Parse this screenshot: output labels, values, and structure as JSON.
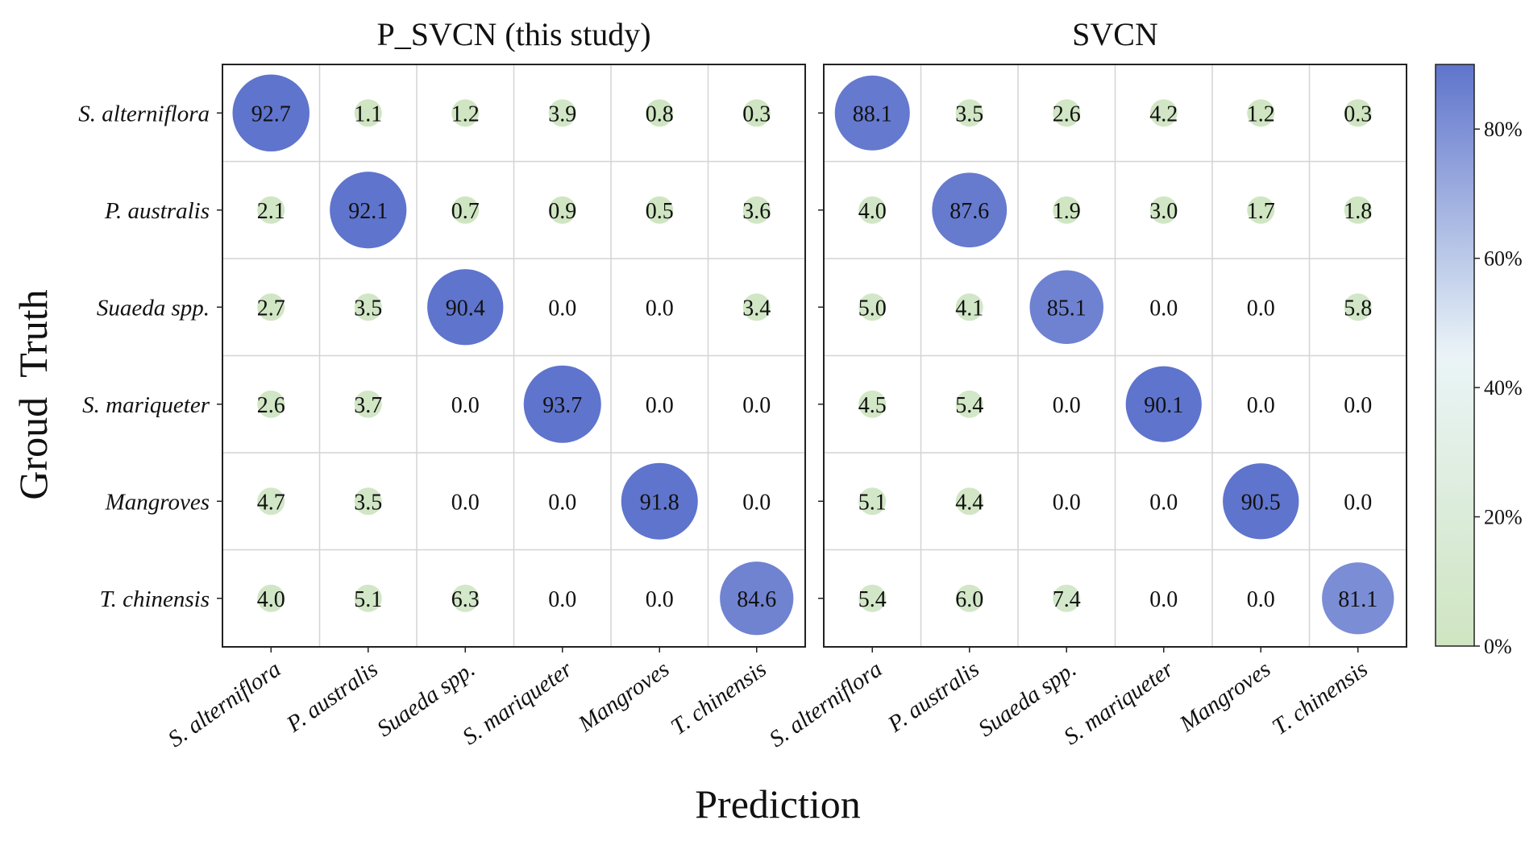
{
  "chart_data": {
    "type": "heatmap",
    "style": "bubble",
    "xlabel": "Prediction",
    "ylabel": "Groud  Truth",
    "categories": [
      "S. alterniflora",
      "P. australis",
      "Suaeda spp.",
      "S. mariqueter",
      "Mangroves",
      "T. chinensis"
    ],
    "panels": [
      {
        "title": "P_SVCN (this study)",
        "values": [
          [
            92.7,
            1.1,
            1.2,
            3.9,
            0.8,
            0.3
          ],
          [
            2.1,
            92.1,
            0.7,
            0.9,
            0.5,
            3.6
          ],
          [
            2.7,
            3.5,
            90.4,
            0.0,
            0.0,
            3.4
          ],
          [
            2.6,
            3.7,
            0.0,
            93.7,
            0.0,
            0.0
          ],
          [
            4.7,
            3.5,
            0.0,
            0.0,
            91.8,
            0.0
          ],
          [
            4.0,
            5.1,
            6.3,
            0.0,
            0.0,
            84.6
          ]
        ]
      },
      {
        "title": "SVCN",
        "values": [
          [
            88.1,
            3.5,
            2.6,
            4.2,
            1.2,
            0.3
          ],
          [
            4.0,
            87.6,
            1.9,
            3.0,
            1.7,
            1.8
          ],
          [
            5.0,
            4.1,
            85.1,
            0.0,
            0.0,
            5.8
          ],
          [
            4.5,
            5.4,
            0.0,
            90.1,
            0.0,
            0.0
          ],
          [
            5.1,
            4.4,
            0.0,
            0.0,
            90.5,
            0.0
          ],
          [
            5.4,
            6.0,
            7.4,
            0.0,
            0.0,
            81.1
          ]
        ]
      }
    ],
    "colorbar": {
      "range": [
        0,
        90
      ],
      "ticks": [
        0,
        20,
        40,
        60,
        80
      ],
      "tick_labels": [
        "0%",
        "20%",
        "40%",
        "60%",
        "80%"
      ],
      "colors": [
        "#cfe5c1",
        "#eaf4f7",
        "#5f74cc"
      ]
    }
  }
}
